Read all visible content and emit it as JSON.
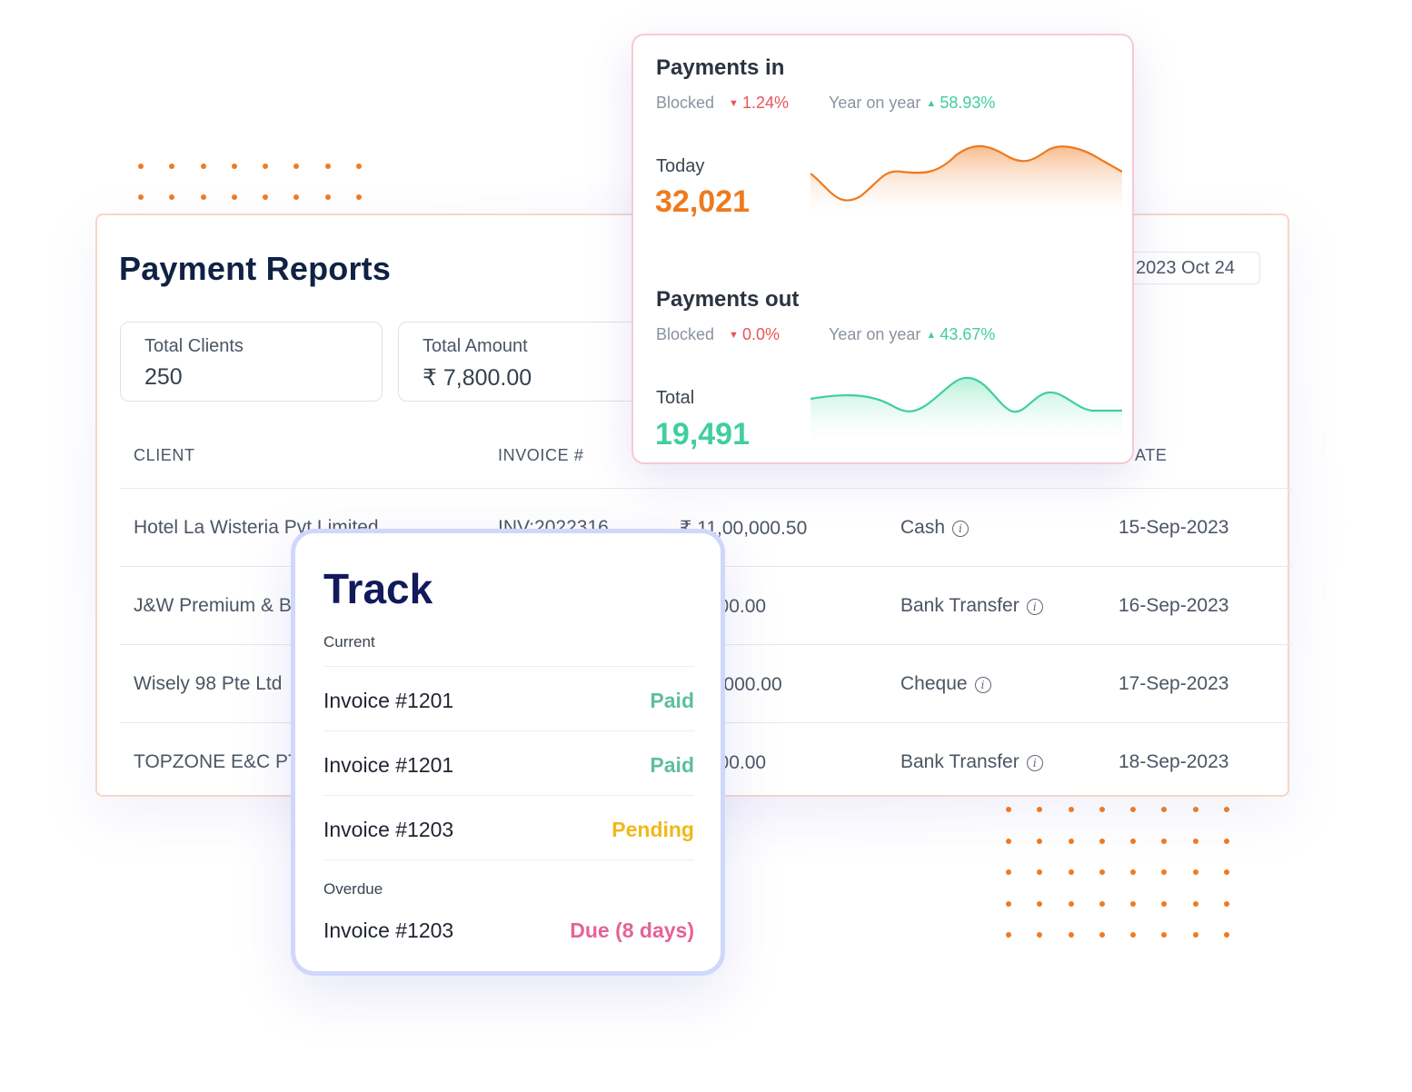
{
  "reports": {
    "title": "Payment Reports",
    "date_filter": "2023 Oct 24",
    "stats": [
      {
        "label": "Total Clients",
        "value": "250"
      },
      {
        "label": "Total Amount",
        "value": "₹ 7,800.00"
      }
    ],
    "columns": [
      "CLIENT",
      "INVOICE #",
      "",
      "",
      "ATE"
    ],
    "rows": [
      {
        "client": "Hotel La Wisteria Pvt Limited",
        "invoice": "INV:2022316",
        "amount": "₹ 11,00,000.50",
        "method": "Cash",
        "date": "15-Sep-2023"
      },
      {
        "client": "J&W Premium & B",
        "invoice": "",
        "amount": "₹ 2300.00",
        "method": "Bank Transfer",
        "date": "16-Sep-2023"
      },
      {
        "client": "Wisely 98 Pte Ltd",
        "invoice": "",
        "amount": "₹ 50,000.00",
        "method": "Cheque",
        "date": "17-Sep-2023"
      },
      {
        "client": "TOPZONE E&C PTE",
        "invoice": "",
        "amount": "₹ 7000.00",
        "method": "Bank Transfer",
        "date": "18-Sep-2023"
      }
    ]
  },
  "payments_in": {
    "title": "Payments in",
    "blocked_label": "Blocked",
    "blocked_change": "1.24%",
    "yoy_label": "Year on year",
    "yoy_change": "58.93%",
    "caption": "Today",
    "value": "32,021",
    "color": "#ee7a1e"
  },
  "payments_out": {
    "title": "Payments out",
    "blocked_label": "Blocked",
    "blocked_change": "0.0%",
    "yoy_label": "Year on year",
    "yoy_change": "43.67%",
    "caption": "Total",
    "value": "19,491",
    "color": "#41cf9c"
  },
  "track": {
    "title": "Track",
    "current_label": "Current",
    "current": [
      {
        "invoice": "Invoice #1201",
        "status": "Paid",
        "color": "#5cbf9b"
      },
      {
        "invoice": "Invoice #1201",
        "status": "Paid",
        "color": "#5cbf9b"
      },
      {
        "invoice": "Invoice #1203",
        "status": "Pending",
        "color": "#f0b81a"
      }
    ],
    "overdue_label": "Overdue",
    "overdue": [
      {
        "invoice": "Invoice #1203",
        "status": "Due (8 days)",
        "color": "#e66296"
      }
    ]
  }
}
